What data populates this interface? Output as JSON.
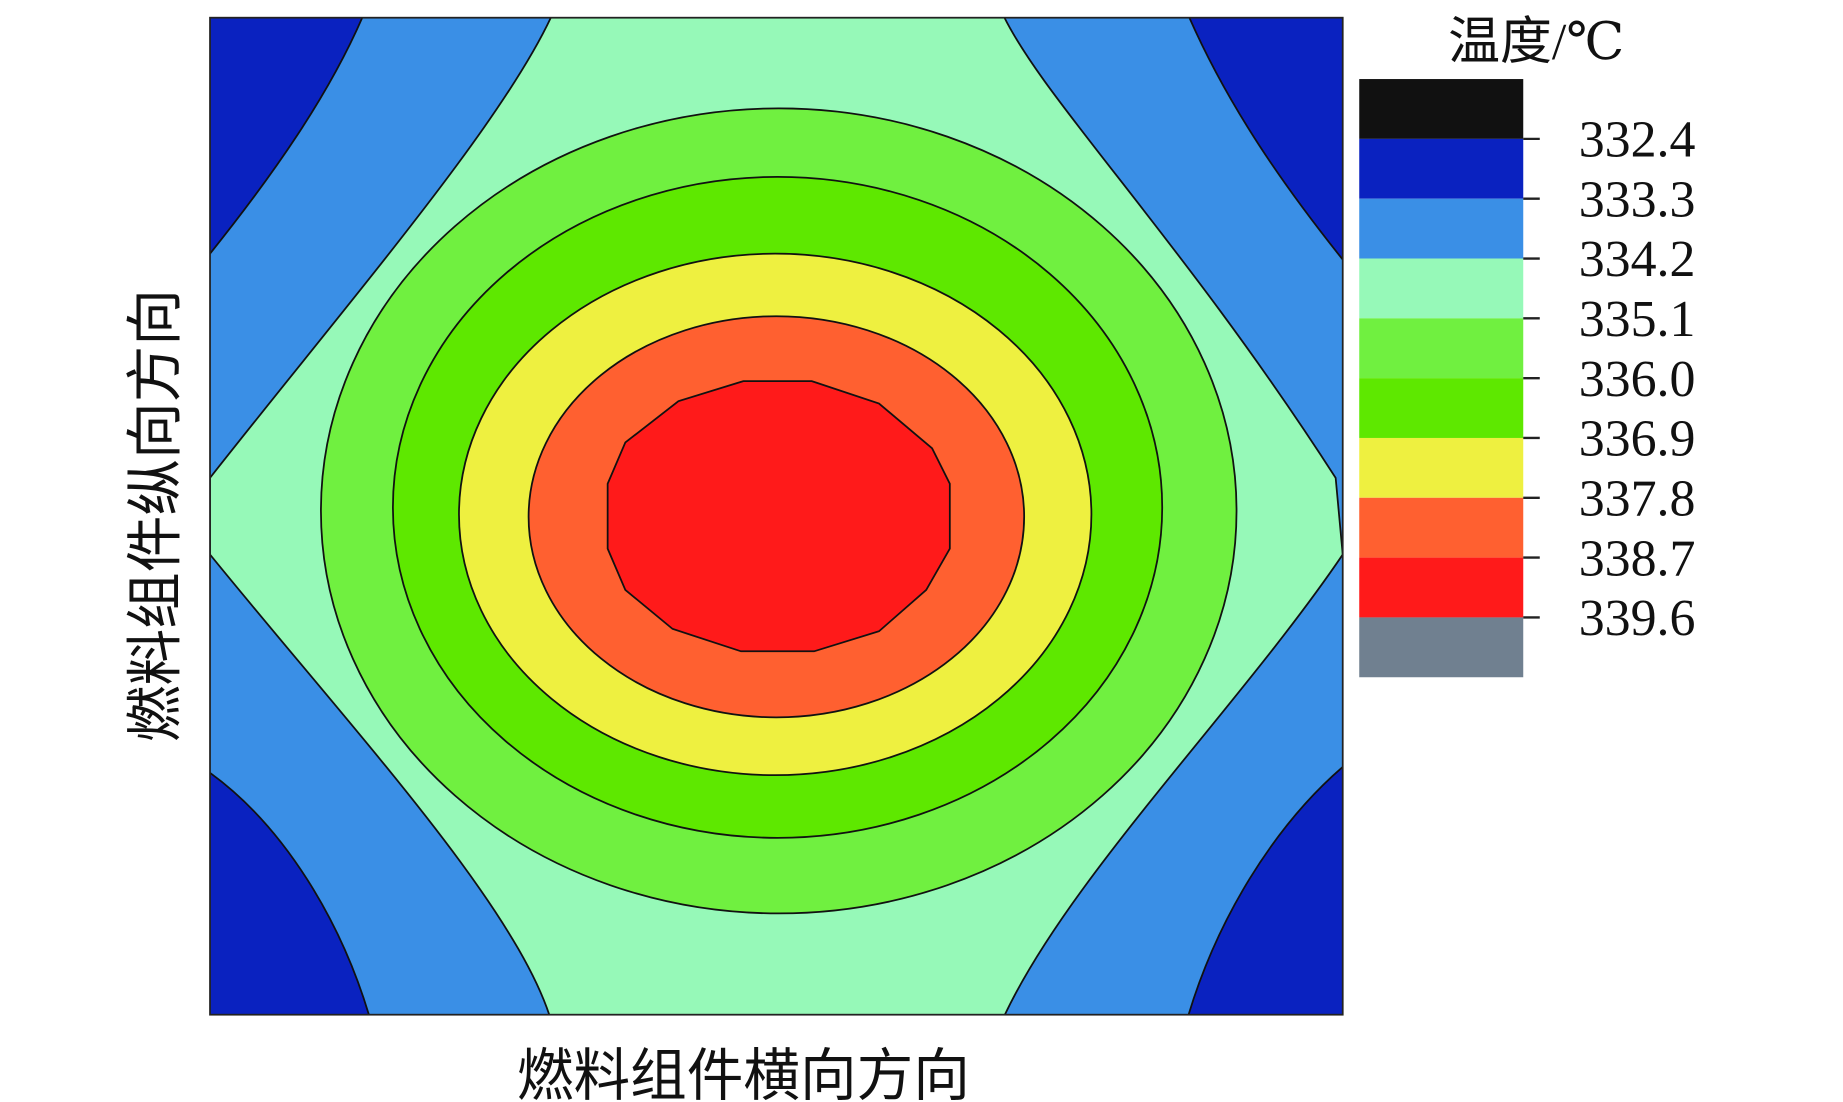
{
  "chart_data": {
    "type": "contour",
    "xlabel": "燃料组件横向方向",
    "ylabel": "燃料组件纵向方向",
    "colorbar": {
      "title": "温度/℃",
      "clim": [
        331.5,
        340.5
      ],
      "ticks": [
        332.4,
        333.3,
        334.2,
        335.1,
        {
          "value": 336,
          "label": "336.0"
        },
        336.9,
        337.8,
        338.7,
        339.6
      ],
      "colors": [
        "#111111",
        "#0a22c0",
        "#3a8fe6",
        "#96f9b8",
        "#70f040",
        "#5ee800",
        "#eef040",
        "#ff6030",
        "#ff1a1a",
        "#708090"
      ]
    }
  }
}
